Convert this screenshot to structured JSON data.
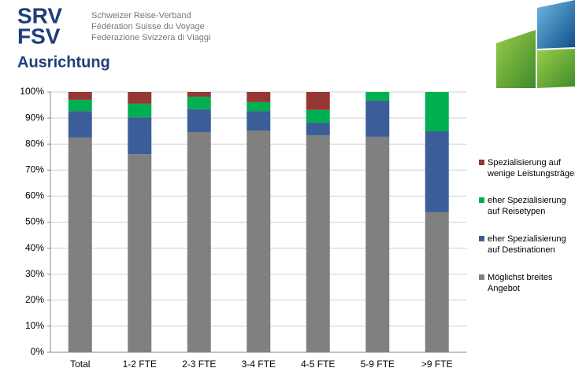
{
  "header": {
    "logo": [
      "SRV",
      "FSV"
    ],
    "org_names": [
      "Schweizer Reise-Verband",
      "Fédération Suisse du Voyage",
      "Federazione Svizzera di Viaggi"
    ]
  },
  "chart_data": {
    "type": "stacked_bar",
    "title": "Ausrichtung",
    "categories": [
      "Total",
      "1-2 FTE",
      "2-3 FTE",
      "3-4 FTE",
      "4-5 FTE",
      "5-9 FTE",
      ">9 FTE"
    ],
    "series": [
      {
        "name": "Möglichst breites Angebot",
        "color": "#808080",
        "values": [
          82.5,
          76.1,
          84.6,
          85.2,
          83.4,
          82.8,
          53.8
        ]
      },
      {
        "name": "eher Spezialisierung auf Destinationen",
        "color": "#3b5e98",
        "values": [
          10.2,
          14.2,
          8.8,
          7.5,
          4.8,
          13.9,
          31.1
        ]
      },
      {
        "name": "eher Spezialisierung auf Reisetypen",
        "color": "#00b050",
        "values": [
          4.3,
          5.2,
          4.8,
          3.4,
          4.9,
          3.3,
          15.1
        ]
      },
      {
        "name": "Spezialisierung auf wenige Leistungsträger",
        "color": "#953735",
        "values": [
          3.0,
          4.5,
          1.8,
          3.9,
          6.9,
          0,
          0
        ]
      }
    ],
    "ylim": [
      0,
      100
    ],
    "yticks": [
      {
        "value": 0,
        "label": "0%"
      },
      {
        "value": 10,
        "label": "10%"
      },
      {
        "value": 20,
        "label": "20%"
      },
      {
        "value": 30,
        "label": "30%"
      },
      {
        "value": 40,
        "label": "40%"
      },
      {
        "value": 50,
        "label": "50%"
      },
      {
        "value": 60,
        "label": "60%"
      },
      {
        "value": 70,
        "label": "70%"
      },
      {
        "value": 80,
        "label": "80%"
      },
      {
        "value": 90,
        "label": "90%"
      },
      {
        "value": 100,
        "label": "100%"
      }
    ],
    "grid": true,
    "legend": "right"
  }
}
